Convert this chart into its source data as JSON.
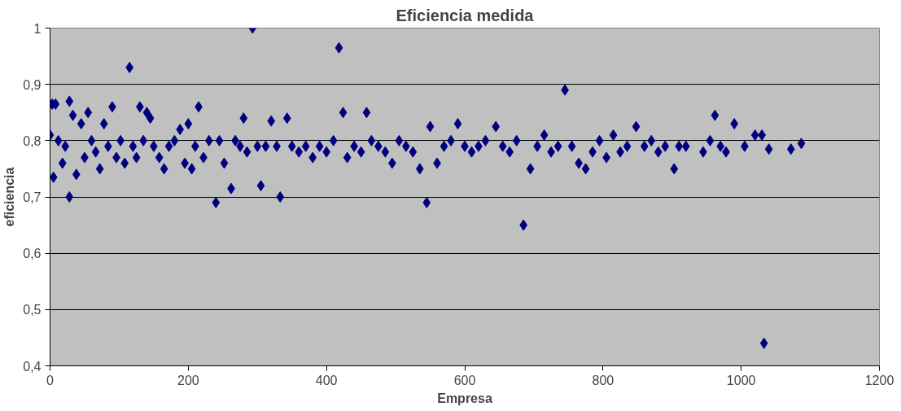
{
  "chart_data": {
    "type": "scatter",
    "title": "Eficiencia medida",
    "xlabel": "Empresa",
    "ylabel": "eficiencia",
    "marker": "diamond",
    "grid": "y",
    "xlim": [
      0,
      1200
    ],
    "xticks": [
      0,
      200,
      400,
      600,
      800,
      1000,
      1200
    ],
    "ylim": [
      0.4,
      1
    ],
    "yticks": [
      {
        "value": 0.4,
        "label": "0,4"
      },
      {
        "value": 0.5,
        "label": "0,5"
      },
      {
        "value": 0.6,
        "label": "0,6"
      },
      {
        "value": 0.7,
        "label": "0,7"
      },
      {
        "value": 0.8,
        "label": "0,8"
      },
      {
        "value": 0.9,
        "label": "0,9"
      },
      {
        "value": 1,
        "label": "1"
      }
    ],
    "series": [
      {
        "color": "#000080",
        "x": [
          0,
          3,
          8,
          5,
          12,
          18,
          22,
          28,
          28,
          33,
          38,
          45,
          50,
          55,
          60,
          66,
          72,
          78,
          84,
          90,
          96,
          102,
          108,
          115,
          120,
          125,
          130,
          135,
          140,
          145,
          150,
          158,
          165,
          172,
          180,
          188,
          195,
          200,
          205,
          210,
          215,
          222,
          230,
          240,
          245,
          252,
          262,
          268,
          275,
          280,
          285,
          293,
          300,
          305,
          312,
          320,
          328,
          333,
          343,
          350,
          360,
          370,
          380,
          390,
          400,
          410,
          418,
          424,
          430,
          440,
          450,
          458,
          465,
          475,
          485,
          495,
          505,
          515,
          525,
          535,
          545,
          550,
          560,
          570,
          580,
          590,
          600,
          610,
          620,
          630,
          645,
          655,
          665,
          675,
          685,
          695,
          705,
          715,
          725,
          735,
          745,
          755,
          765,
          775,
          785,
          795,
          805,
          815,
          825,
          835,
          848,
          860,
          870,
          880,
          890,
          903,
          910,
          920,
          945,
          955,
          962,
          970,
          978,
          990,
          1005,
          1020,
          1030,
          1033,
          1040,
          1072,
          1087
        ],
        "values": [
          0.81,
          0.865,
          0.865,
          0.735,
          0.8,
          0.76,
          0.79,
          0.87,
          0.7,
          0.845,
          0.74,
          0.83,
          0.77,
          0.85,
          0.8,
          0.78,
          0.75,
          0.83,
          0.79,
          0.86,
          0.77,
          0.8,
          0.76,
          0.93,
          0.79,
          0.77,
          0.86,
          0.8,
          0.85,
          0.84,
          0.79,
          0.77,
          0.75,
          0.79,
          0.8,
          0.82,
          0.76,
          0.83,
          0.75,
          0.79,
          0.86,
          0.77,
          0.8,
          0.69,
          0.8,
          0.76,
          0.715,
          0.8,
          0.79,
          0.84,
          0.78,
          1.0,
          0.79,
          0.72,
          0.79,
          0.835,
          0.79,
          0.7,
          0.84,
          0.79,
          0.78,
          0.79,
          0.77,
          0.79,
          0.78,
          0.8,
          0.965,
          0.85,
          0.77,
          0.79,
          0.78,
          0.85,
          0.8,
          0.79,
          0.78,
          0.76,
          0.8,
          0.79,
          0.78,
          0.75,
          0.69,
          0.825,
          0.76,
          0.79,
          0.8,
          0.83,
          0.79,
          0.78,
          0.79,
          0.8,
          0.825,
          0.79,
          0.78,
          0.8,
          0.65,
          0.75,
          0.79,
          0.81,
          0.78,
          0.79,
          0.89,
          0.79,
          0.76,
          0.75,
          0.78,
          0.8,
          0.77,
          0.81,
          0.78,
          0.79,
          0.825,
          0.79,
          0.8,
          0.78,
          0.79,
          0.75,
          0.79,
          0.79,
          0.78,
          0.8,
          0.845,
          0.79,
          0.78,
          0.83,
          0.79,
          0.81,
          0.81,
          0.44,
          0.785,
          0.785,
          0.795
        ]
      }
    ]
  }
}
